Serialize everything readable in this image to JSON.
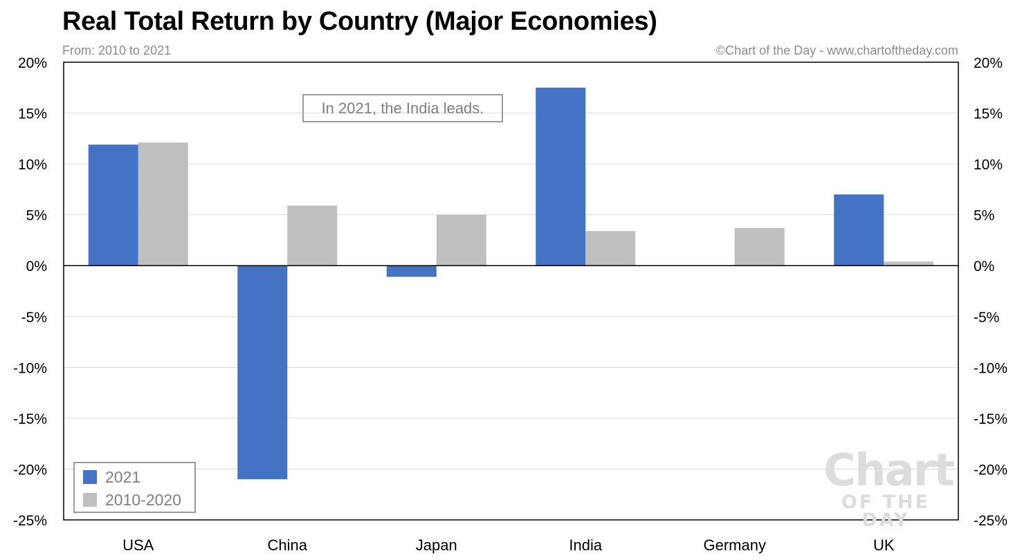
{
  "title": "Real Total Return by Country (Major Economies)",
  "subtitle": "From: 2010 to 2021",
  "credit": "©Chart of the Day - www.chartoftheday.com",
  "annotation": "In 2021, the India leads.",
  "watermark": {
    "line1": "Chart",
    "line2": "OF THE DAY"
  },
  "chart_data": {
    "type": "bar",
    "categories": [
      "USA",
      "China",
      "Japan",
      "India",
      "Germany",
      "UK"
    ],
    "series": [
      {
        "name": "2021",
        "values": [
          11.9,
          -21.0,
          -1.1,
          17.5,
          0.0,
          7.0
        ],
        "color": "#4472c4"
      },
      {
        "name": "2010-2020",
        "values": [
          12.1,
          5.9,
          5.0,
          3.4,
          3.7,
          0.4
        ],
        "color": "#bfbfbf"
      }
    ],
    "ylim": [
      -25,
      20
    ],
    "yticks": [
      "20%",
      "15%",
      "10%",
      "5%",
      "0%",
      "-5%",
      "-10%",
      "-15%",
      "-20%",
      "-25%"
    ],
    "ytick_values": [
      20,
      15,
      10,
      5,
      0,
      -5,
      -10,
      -15,
      -20,
      -25
    ],
    "xlabel": "",
    "ylabel": "",
    "grid": true,
    "legend": "bottom-left"
  }
}
